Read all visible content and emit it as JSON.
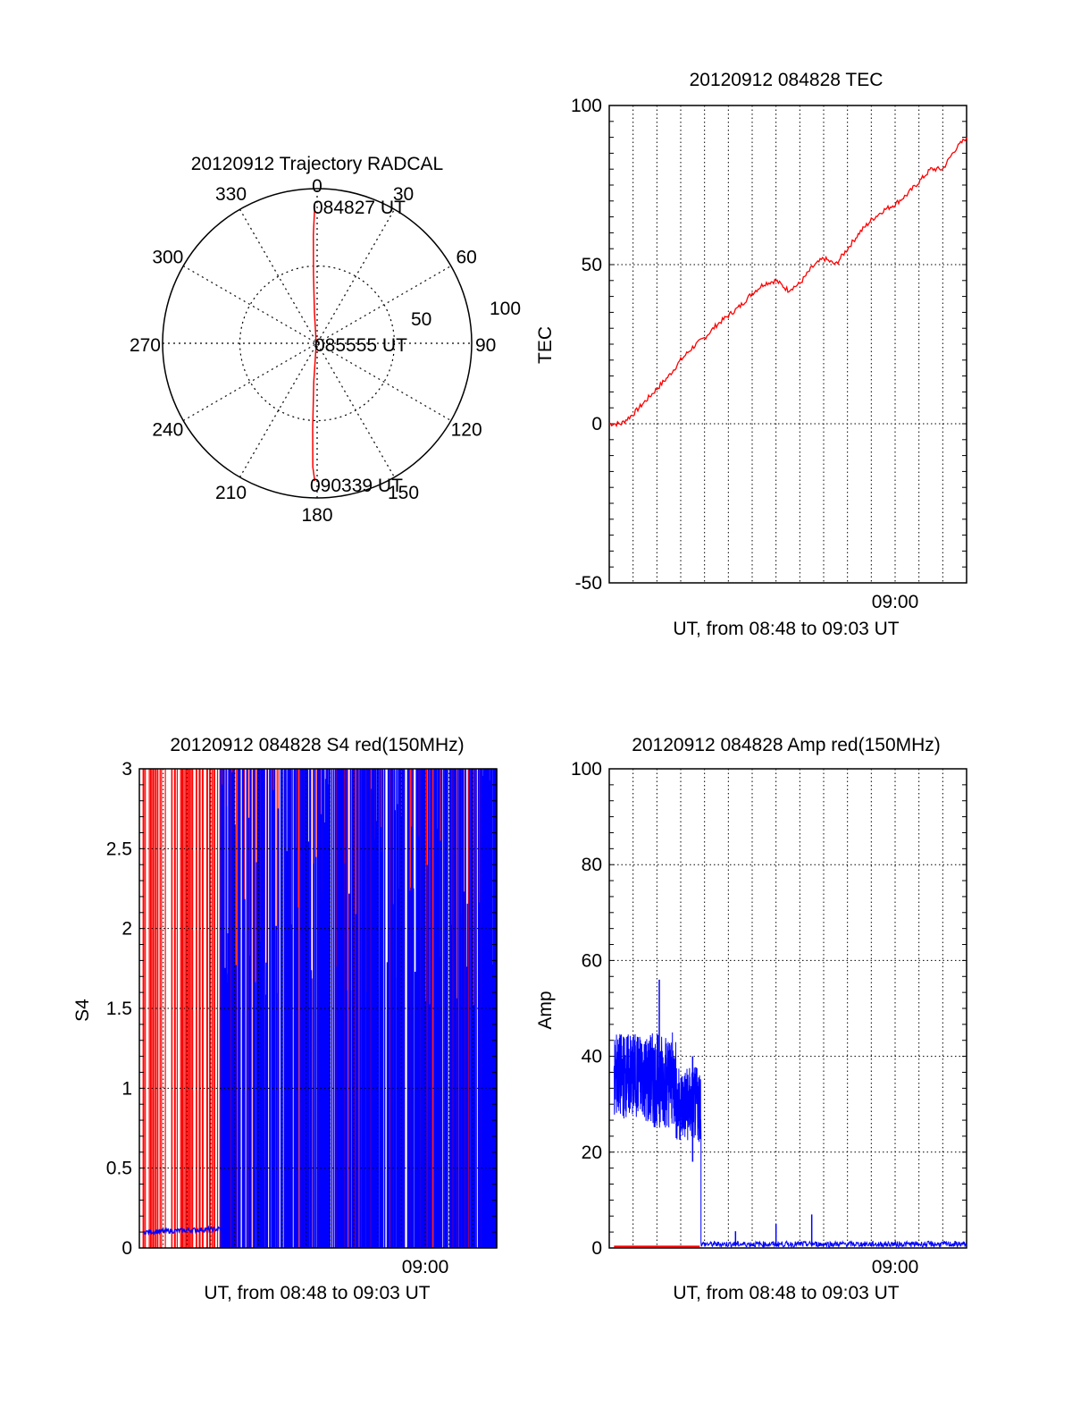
{
  "chart_data": [
    {
      "type": "polar",
      "title": "20120912 Trajectory RADCAL",
      "angle_labels": [
        "0",
        "30",
        "60",
        "90",
        "120",
        "150",
        "180",
        "210",
        "240",
        "270",
        "300",
        "330"
      ],
      "radial_labels": [
        "50",
        "100"
      ],
      "rlim": [
        0,
        100
      ],
      "annotations": [
        "084827 UT",
        "085555 UT",
        "090339 UT"
      ],
      "trajectory": [
        {
          "az": 359,
          "r": 89
        },
        {
          "az": 358,
          "r": 70
        },
        {
          "az": 357,
          "r": 45
        },
        {
          "az": 355,
          "r": 20
        },
        {
          "az": 350,
          "r": 5
        },
        {
          "az": 200,
          "r": 2
        },
        {
          "az": 185,
          "r": 25
        },
        {
          "az": 183,
          "r": 55
        },
        {
          "az": 182,
          "r": 80
        },
        {
          "az": 181,
          "r": 89
        }
      ],
      "grid": true,
      "color": "#ff0000"
    },
    {
      "type": "line",
      "title": "20120912 084828 TEC",
      "ylabel": "TEC",
      "xlabel": "UT, from 08:48 to 09:03 UT",
      "xtick_labels": [
        {
          "at": 12,
          "label": "09:00"
        }
      ],
      "ytick_labels": [
        "-50",
        "0",
        "50",
        "100"
      ],
      "xlim": [
        0,
        15
      ],
      "ylim": [
        -50,
        100
      ],
      "grid": true,
      "series": [
        {
          "color": "#ff0000",
          "x": [
            0,
            0.5,
            1,
            1.5,
            2,
            2.5,
            3,
            3.5,
            4,
            4.5,
            5,
            5.5,
            6,
            6.5,
            7,
            7.5,
            8,
            8.5,
            9,
            9.5,
            10,
            10.5,
            11,
            11.5,
            12,
            12.5,
            13,
            13.5,
            14,
            14.5,
            15
          ],
          "y": [
            0,
            0,
            3,
            7,
            11,
            15,
            20,
            24,
            27,
            31,
            34,
            37,
            41,
            44,
            45,
            42,
            44,
            49,
            52,
            50,
            55,
            60,
            64,
            67,
            69,
            72,
            76,
            80,
            80,
            86,
            90
          ]
        }
      ]
    },
    {
      "type": "line",
      "title": "20120912 084828 S4 red(150MHz)",
      "ylabel": "S4",
      "xlabel": "UT, from 08:48 to 09:03 UT",
      "xtick_labels": [
        {
          "at": 12,
          "label": "09:00"
        }
      ],
      "ytick_labels": [
        "0",
        "0.5",
        "1",
        "1.5",
        "2",
        "2.5",
        "3"
      ],
      "xlim": [
        0,
        15
      ],
      "ylim": [
        0,
        3
      ],
      "grid": true,
      "series": [
        {
          "color": "#ff0000",
          "style": "spikes-full",
          "x_range": [
            0.1,
            15
          ]
        },
        {
          "color": "#0000ff",
          "style": "baseline",
          "x_range": [
            0.2,
            3.5
          ],
          "level": 0.1
        },
        {
          "color": "#0000ff",
          "style": "spikes-full",
          "x_range": [
            3.4,
            15
          ]
        }
      ]
    },
    {
      "type": "line",
      "title": "20120912 084828 Amp red(150MHz)",
      "ylabel": "Amp",
      "xlabel": "UT, from 08:48 to 09:03 UT",
      "xtick_labels": [
        {
          "at": 12,
          "label": "09:00"
        }
      ],
      "ytick_labels": [
        "0",
        "20",
        "40",
        "60",
        "80",
        "100"
      ],
      "xlim": [
        0,
        15
      ],
      "ylim": [
        0,
        100
      ],
      "grid": true,
      "series": [
        {
          "color": "#0000ff",
          "style": "noise",
          "segments": [
            {
              "x0": 0.2,
              "x1": 1.5,
              "mean": 36,
              "amp": 9
            },
            {
              "x0": 1.5,
              "x1": 2.8,
              "mean": 35,
              "amp": 10
            },
            {
              "x0": 2.8,
              "x1": 3.85,
              "mean": 30,
              "amp": 8
            },
            {
              "x0": 3.85,
              "x1": 15,
              "mean": 0.8,
              "amp": 0.6
            }
          ],
          "peaks": [
            {
              "x": 2.1,
              "y": 56
            },
            {
              "x": 3.5,
              "y": 40
            },
            {
              "x": 5.3,
              "y": 3.5
            },
            {
              "x": 7.0,
              "y": 5
            },
            {
              "x": 8.5,
              "y": 7
            }
          ]
        },
        {
          "color": "#ff0000",
          "style": "flat",
          "x_range": [
            0.2,
            3.8
          ],
          "level": 0.3
        }
      ]
    }
  ]
}
